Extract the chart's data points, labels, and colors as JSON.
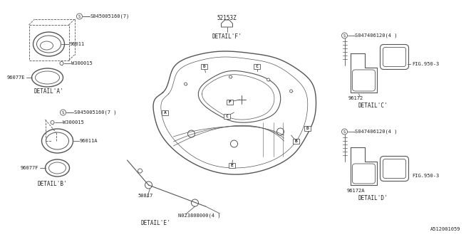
{
  "bg_color": "#ffffff",
  "lc": "#555555",
  "tc": "#222222",
  "part_number": "A512001059",
  "fs": 5.5,
  "detail_a": {
    "screw": "S045005160(7)",
    "p1": "96011",
    "p2": "W300015",
    "p3": "96077E",
    "label": "DETAIL'A'"
  },
  "detail_b": {
    "screw": "S045005160(7 )",
    "p1": "96011A",
    "p2": "W300015",
    "p3": "96077F",
    "label": "DETAIL'B'"
  },
  "detail_c": {
    "screw": "S047406120(4 )",
    "p1": "96172",
    "p2": "FIG.950-3",
    "label": "DETAIL'C'"
  },
  "detail_d": {
    "screw": "S047406120(4 )",
    "p1": "96172A",
    "p2": "FIG.950-3",
    "label": "DETAIL'D'"
  },
  "detail_e": {
    "p1": "50817",
    "p2": "N023808000(4 )",
    "label": "DETAIL'E'"
  },
  "detail_f": {
    "p1": "52153Z",
    "label": "DETAIL'F'"
  }
}
